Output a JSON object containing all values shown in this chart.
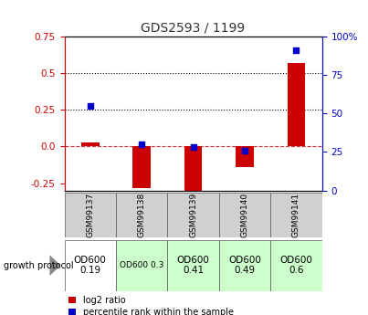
{
  "title": "GDS2593 / 1199",
  "samples": [
    "GSM99137",
    "GSM99138",
    "GSM99139",
    "GSM99140",
    "GSM99141"
  ],
  "log2_ratio": [
    0.03,
    -0.28,
    -0.3,
    -0.14,
    0.57
  ],
  "percentile_rank_pct": [
    55,
    30,
    28,
    26,
    91
  ],
  "ylim_left": [
    -0.3,
    0.75
  ],
  "ylim_right": [
    0,
    100
  ],
  "yticks_left": [
    -0.25,
    0.0,
    0.25,
    0.5,
    0.75
  ],
  "yticks_right": [
    0,
    25,
    50,
    75,
    100
  ],
  "hlines": [
    0.5,
    0.25
  ],
  "bar_color": "#cc0000",
  "dot_color": "#0000cc",
  "zero_line_color": "#cc0000",
  "protocol_labels": [
    "OD600\n0.19",
    "OD600 0.3",
    "OD600\n0.41",
    "OD600\n0.49",
    "OD600\n0.6"
  ],
  "protocol_bg": [
    "#ffffff",
    "#ccffcc",
    "#ccffcc",
    "#ccffcc",
    "#ccffcc"
  ],
  "protocol_fontsize": [
    7.5,
    6.5,
    7.5,
    7.5,
    7.5
  ],
  "bar_width": 0.35,
  "dot_size": 18,
  "title_color": "#333333",
  "left_axis_color": "#cc0000",
  "right_axis_color": "#0000cc",
  "fig_width": 4.03,
  "fig_height": 3.45
}
